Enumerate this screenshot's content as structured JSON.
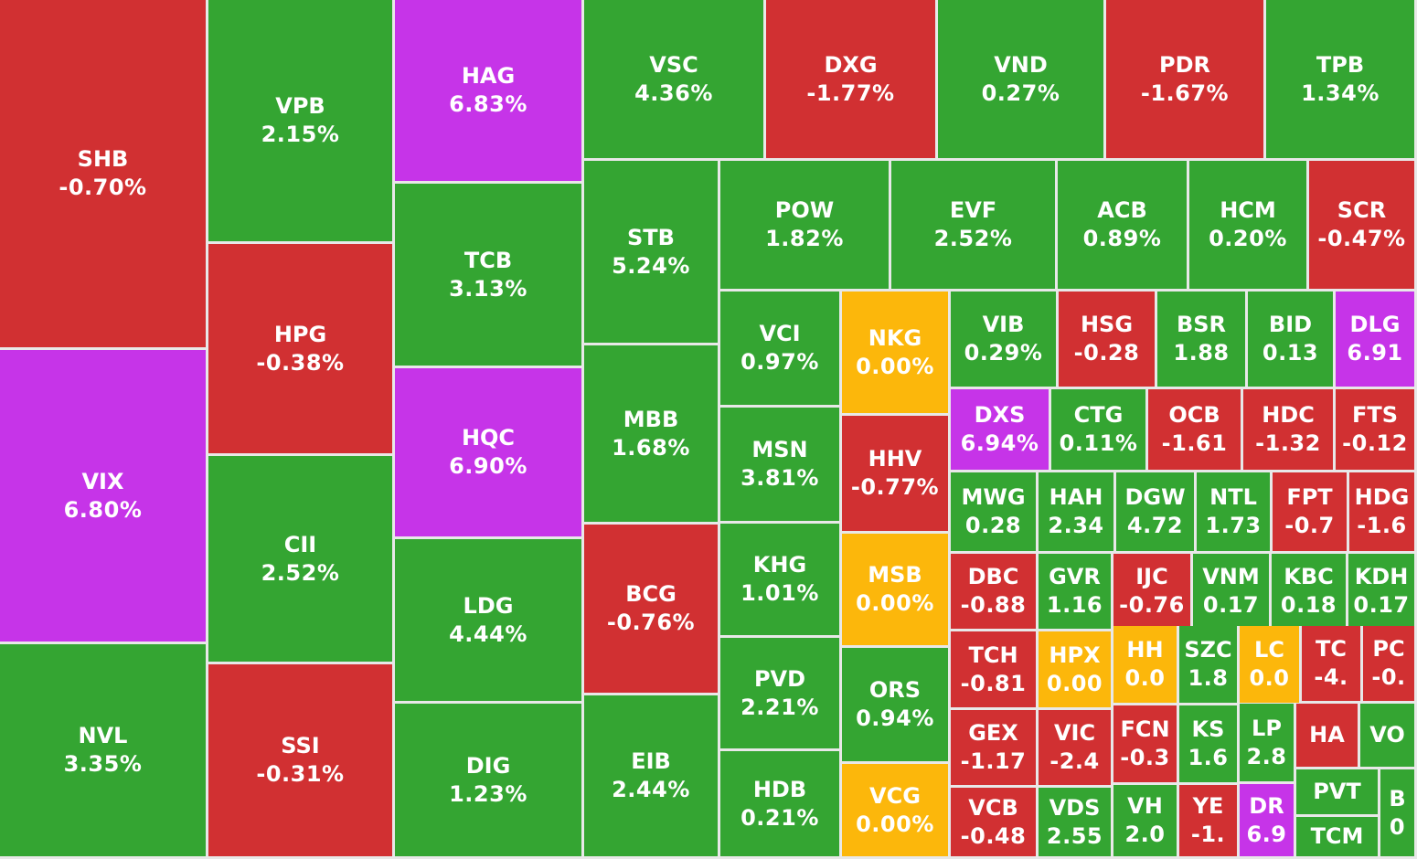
{
  "colors": {
    "up": "#34a532",
    "down": "#d13032",
    "ceiling": "#c634e8",
    "flat": "#fcb70b"
  },
  "chart_data": {
    "type": "heatmap",
    "layout": "treemap",
    "title": "",
    "tiles": [
      {
        "ticker": "SHB",
        "change_label": "-0.70%",
        "change": -0.7,
        "status": "down"
      },
      {
        "ticker": "VIX",
        "change_label": "6.80%",
        "change": 6.8,
        "status": "ceiling"
      },
      {
        "ticker": "NVL",
        "change_label": "3.35%",
        "change": 3.35,
        "status": "up"
      },
      {
        "ticker": "VPB",
        "change_label": "2.15%",
        "change": 2.15,
        "status": "up"
      },
      {
        "ticker": "HPG",
        "change_label": "-0.38%",
        "change": -0.38,
        "status": "down"
      },
      {
        "ticker": "CII",
        "change_label": "2.52%",
        "change": 2.52,
        "status": "up"
      },
      {
        "ticker": "SSI",
        "change_label": "-0.31%",
        "change": -0.31,
        "status": "down"
      },
      {
        "ticker": "HAG",
        "change_label": "6.83%",
        "change": 6.83,
        "status": "ceiling"
      },
      {
        "ticker": "TCB",
        "change_label": "3.13%",
        "change": 3.13,
        "status": "up"
      },
      {
        "ticker": "HQC",
        "change_label": "6.90%",
        "change": 6.9,
        "status": "ceiling"
      },
      {
        "ticker": "LDG",
        "change_label": "4.44%",
        "change": 4.44,
        "status": "up"
      },
      {
        "ticker": "DIG",
        "change_label": "1.23%",
        "change": 1.23,
        "status": "up"
      },
      {
        "ticker": "VSC",
        "change_label": "4.36%",
        "change": 4.36,
        "status": "up"
      },
      {
        "ticker": "DXG",
        "change_label": "-1.77%",
        "change": -1.77,
        "status": "down"
      },
      {
        "ticker": "VND",
        "change_label": "0.27%",
        "change": 0.27,
        "status": "up"
      },
      {
        "ticker": "PDR",
        "change_label": "-1.67%",
        "change": -1.67,
        "status": "down"
      },
      {
        "ticker": "TPB",
        "change_label": "1.34%",
        "change": 1.34,
        "status": "up"
      },
      {
        "ticker": "STB",
        "change_label": "5.24%",
        "change": 5.24,
        "status": "up"
      },
      {
        "ticker": "MBB",
        "change_label": "1.68%",
        "change": 1.68,
        "status": "up"
      },
      {
        "ticker": "BCG",
        "change_label": "-0.76%",
        "change": -0.76,
        "status": "down"
      },
      {
        "ticker": "EIB",
        "change_label": "2.44%",
        "change": 2.44,
        "status": "up"
      },
      {
        "ticker": "POW",
        "change_label": "1.82%",
        "change": 1.82,
        "status": "up"
      },
      {
        "ticker": "EVF",
        "change_label": "2.52%",
        "change": 2.52,
        "status": "up"
      },
      {
        "ticker": "ACB",
        "change_label": "0.89%",
        "change": 0.89,
        "status": "up"
      },
      {
        "ticker": "HCM",
        "change_label": "0.20%",
        "change": 0.2,
        "status": "up"
      },
      {
        "ticker": "SCR",
        "change_label": "-0.47%",
        "change": -0.47,
        "status": "down"
      },
      {
        "ticker": "VCI",
        "change_label": "0.97%",
        "change": 0.97,
        "status": "up"
      },
      {
        "ticker": "MSN",
        "change_label": "3.81%",
        "change": 3.81,
        "status": "up"
      },
      {
        "ticker": "KHG",
        "change_label": "1.01%",
        "change": 1.01,
        "status": "up"
      },
      {
        "ticker": "PVD",
        "change_label": "2.21%",
        "change": 2.21,
        "status": "up"
      },
      {
        "ticker": "HDB",
        "change_label": "0.21%",
        "change": 0.21,
        "status": "up"
      },
      {
        "ticker": "NKG",
        "change_label": "0.00%",
        "change": 0.0,
        "status": "flat"
      },
      {
        "ticker": "HHV",
        "change_label": "-0.77%",
        "change": -0.77,
        "status": "down"
      },
      {
        "ticker": "MSB",
        "change_label": "0.00%",
        "change": 0.0,
        "status": "flat"
      },
      {
        "ticker": "ORS",
        "change_label": "0.94%",
        "change": 0.94,
        "status": "up"
      },
      {
        "ticker": "VCG",
        "change_label": "0.00%",
        "change": 0.0,
        "status": "flat"
      },
      {
        "ticker": "VIB",
        "change_label": "0.29%",
        "change": 0.29,
        "status": "up"
      },
      {
        "ticker": "HSG",
        "change_label": "-0.28",
        "change": -0.28,
        "status": "down"
      },
      {
        "ticker": "BSR",
        "change_label": "1.88",
        "change": 1.88,
        "status": "up"
      },
      {
        "ticker": "BID",
        "change_label": "0.13",
        "change": 0.13,
        "status": "up"
      },
      {
        "ticker": "DLG",
        "change_label": "6.91",
        "change": 6.91,
        "status": "ceiling"
      },
      {
        "ticker": "DXS",
        "change_label": "6.94%",
        "change": 6.94,
        "status": "ceiling"
      },
      {
        "ticker": "CTG",
        "change_label": "0.11%",
        "change": 0.11,
        "status": "up"
      },
      {
        "ticker": "OCB",
        "change_label": "-1.61",
        "change": -1.61,
        "status": "down"
      },
      {
        "ticker": "HDC",
        "change_label": "-1.32",
        "change": -1.32,
        "status": "down"
      },
      {
        "ticker": "FTS",
        "change_label": "-0.12",
        "change": -0.12,
        "status": "down"
      },
      {
        "ticker": "MWG",
        "change_label": "0.28",
        "change": 0.28,
        "status": "up"
      },
      {
        "ticker": "HAH",
        "change_label": "2.34",
        "change": 2.34,
        "status": "up"
      },
      {
        "ticker": "DGW",
        "change_label": "4.72",
        "change": 4.72,
        "status": "up"
      },
      {
        "ticker": "NTL",
        "change_label": "1.73",
        "change": 1.73,
        "status": "up"
      },
      {
        "ticker": "FPT",
        "change_label": "-0.7",
        "change": -0.7,
        "status": "down"
      },
      {
        "ticker": "HDG",
        "change_label": "-1.6",
        "change": -1.6,
        "status": "down"
      },
      {
        "ticker": "DBC",
        "change_label": "-0.88",
        "change": -0.88,
        "status": "down"
      },
      {
        "ticker": "GVR",
        "change_label": "1.16",
        "change": 1.16,
        "status": "up"
      },
      {
        "ticker": "IJC",
        "change_label": "-0.76",
        "change": -0.76,
        "status": "down"
      },
      {
        "ticker": "VNM",
        "change_label": "0.17",
        "change": 0.17,
        "status": "up"
      },
      {
        "ticker": "KBC",
        "change_label": "0.18",
        "change": 0.18,
        "status": "up"
      },
      {
        "ticker": "KDH",
        "change_label": "0.17",
        "change": 0.17,
        "status": "up"
      },
      {
        "ticker": "TCH",
        "change_label": "-0.81",
        "change": -0.81,
        "status": "down"
      },
      {
        "ticker": "HPX",
        "change_label": "0.00",
        "change": 0.0,
        "status": "flat"
      },
      {
        "ticker": "HH",
        "change_label": "0.0",
        "change": 0.0,
        "status": "flat"
      },
      {
        "ticker": "SZC",
        "change_label": "1.8",
        "change": 1.8,
        "status": "up"
      },
      {
        "ticker": "LC",
        "change_label": "0.0",
        "change": 0.0,
        "status": "flat"
      },
      {
        "ticker": "TC",
        "change_label": "-4.",
        "change": -4,
        "status": "down"
      },
      {
        "ticker": "PC",
        "change_label": "-0.",
        "change": 0,
        "status": "down"
      },
      {
        "ticker": "GEX",
        "change_label": "-1.17",
        "change": -1.17,
        "status": "down"
      },
      {
        "ticker": "VIC",
        "change_label": "-2.4",
        "change": -2.4,
        "status": "down"
      },
      {
        "ticker": "FCN",
        "change_label": "-0.3",
        "change": -0.3,
        "status": "down"
      },
      {
        "ticker": "KS",
        "change_label": "1.6",
        "change": 1.6,
        "status": "up"
      },
      {
        "ticker": "LP",
        "change_label": "2.8",
        "change": 2.8,
        "status": "up"
      },
      {
        "ticker": "HA",
        "change_label": "",
        "change": null,
        "status": "down"
      },
      {
        "ticker": "VO",
        "change_label": "",
        "change": null,
        "status": "up"
      },
      {
        "ticker": "VCB",
        "change_label": "-0.48",
        "change": -0.48,
        "status": "down"
      },
      {
        "ticker": "VDS",
        "change_label": "2.55",
        "change": 2.55,
        "status": "up"
      },
      {
        "ticker": "VH",
        "change_label": "2.0",
        "change": 2.0,
        "status": "up"
      },
      {
        "ticker": "YE",
        "change_label": "-1.",
        "change": -1,
        "status": "down"
      },
      {
        "ticker": "DR",
        "change_label": "6.9",
        "change": 6.9,
        "status": "ceiling"
      },
      {
        "ticker": "PVT",
        "change_label": "",
        "change": null,
        "status": "up"
      },
      {
        "ticker": "TCM",
        "change_label": "",
        "change": null,
        "status": "up"
      },
      {
        "ticker": "B",
        "change_label": "0",
        "change": 0,
        "status": "up"
      }
    ]
  }
}
